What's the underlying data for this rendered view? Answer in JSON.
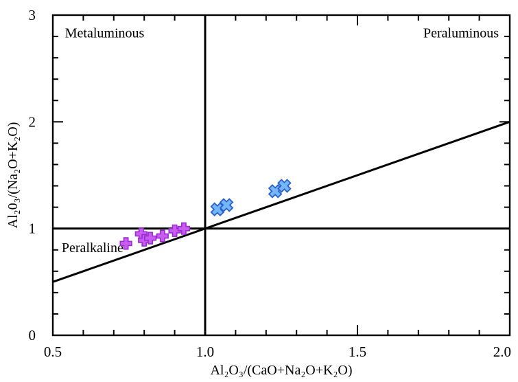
{
  "chart_data": {
    "type": "scatter",
    "title": "",
    "xlabel": "Al₂O₃/(CaO+Na₂O+K₂O)",
    "ylabel": "Al₂0₃/(Na₂O+K₂O)",
    "xlim": [
      0.5,
      2.0
    ],
    "ylim": [
      0,
      3
    ],
    "x_major_tick": 0.5,
    "x_minor_tick": 0.1,
    "y_major_tick": 1.0,
    "y_minor_tick": 0.2,
    "x_tick_labels": [
      "0.5",
      "1.0",
      "1.5",
      "2.0"
    ],
    "y_tick_labels": [
      "0",
      "1",
      "2",
      "3"
    ],
    "grid": false,
    "legend": false,
    "axis_color": "#000000",
    "background": "#ffffff",
    "series": [
      {
        "name": "violet-plus-samples",
        "marker": "plus",
        "fill": "#c95cf0",
        "stroke": "#9a2bd0",
        "points": [
          {
            "x": 0.74,
            "y": 0.86
          },
          {
            "x": 0.79,
            "y": 0.95
          },
          {
            "x": 0.8,
            "y": 0.89
          },
          {
            "x": 0.82,
            "y": 0.91
          },
          {
            "x": 0.86,
            "y": 0.93
          },
          {
            "x": 0.9,
            "y": 0.98
          },
          {
            "x": 0.93,
            "y": 1.0
          }
        ]
      },
      {
        "name": "blue-x-samples",
        "marker": "x",
        "fill": "#74b6f6",
        "stroke": "#2a5fd0",
        "points": [
          {
            "x": 1.04,
            "y": 1.18
          },
          {
            "x": 1.07,
            "y": 1.22
          },
          {
            "x": 1.23,
            "y": 1.35
          },
          {
            "x": 1.26,
            "y": 1.4
          }
        ]
      }
    ],
    "reference_lines": [
      {
        "name": "vertical-acnk-equals-1",
        "x1": 1.0,
        "y1": 0.0,
        "x2": 1.0,
        "y2": 3.0
      },
      {
        "name": "horizontal-ank-equals-1",
        "x1": 0.5,
        "y1": 1.0,
        "x2": 2.0,
        "y2": 1.0
      },
      {
        "name": "diagonal-ank-equals-acnk",
        "x1": 0.5,
        "y1": 0.5,
        "x2": 2.0,
        "y2": 2.0
      }
    ],
    "annotations": [
      {
        "id": "metaluminous",
        "text": "Metaluminous",
        "x": 0.54,
        "y": 2.79,
        "anchor": "start"
      },
      {
        "id": "peraluminous",
        "text": "Peraluminous",
        "x": 1.964,
        "y": 2.79,
        "anchor": "end"
      },
      {
        "id": "peralkaline",
        "text": "Peralkaline",
        "x": 0.529,
        "y": 0.78,
        "anchor": "start"
      }
    ]
  }
}
